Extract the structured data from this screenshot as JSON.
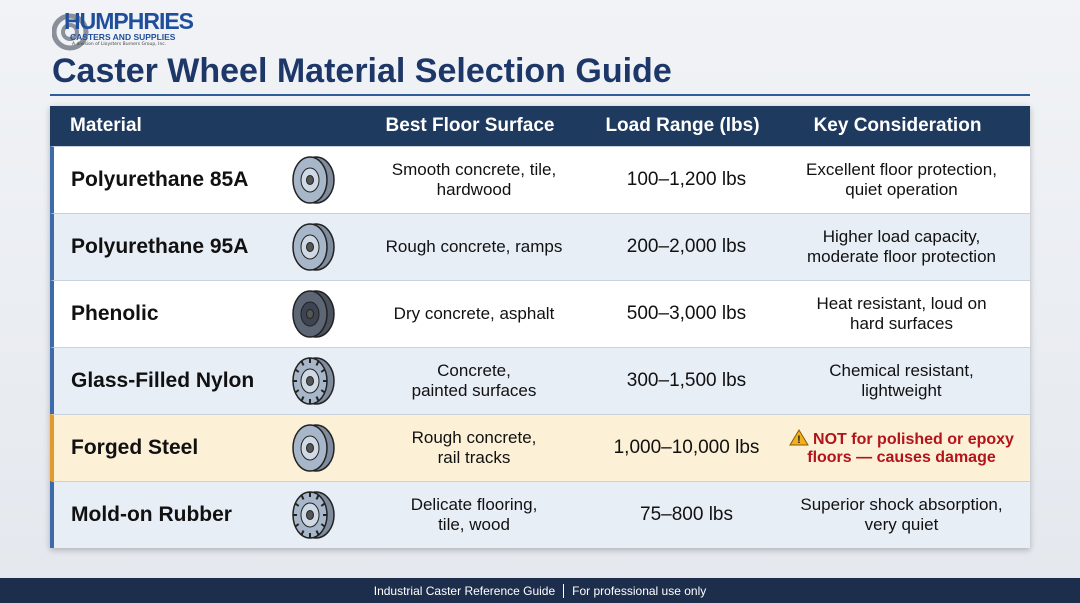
{
  "header": {
    "logo": "HUMPHRIES",
    "logo_sub": "CASTERS AND SUPPLIES",
    "logo_note": "A division of Lloysters Burners Group, Inc.",
    "title": "Caster Wheel Material Selection Guide"
  },
  "table": {
    "columns": [
      "Material",
      "Best Floor Surface",
      "Load Range (lbs)",
      "Key Consideration"
    ],
    "rows": [
      {
        "material": "Polyurethane 85A",
        "floor": [
          "Smooth concrete, tile,",
          "hardwood"
        ],
        "load": "100–1,200 lbs",
        "key": [
          "Excellent floor protection,",
          "quiet operation"
        ]
      },
      {
        "material": "Polyurethane 95A",
        "floor": [
          "Rough concrete, ramps"
        ],
        "load": "200–2,000 lbs",
        "key": [
          "Higher load capacity,",
          "moderate floor protection"
        ]
      },
      {
        "material": "Phenolic",
        "floor": [
          "Dry concrete, asphalt"
        ],
        "load": "500–3,000 lbs",
        "key": [
          "Heat resistant, loud on",
          "hard surfaces"
        ]
      },
      {
        "material": "Glass-Filled Nylon",
        "floor": [
          "Concrete,",
          "painted surfaces"
        ],
        "load": "300–1,500 lbs",
        "key": [
          "Chemical resistant,",
          "lightweight"
        ]
      },
      {
        "material": "Forged Steel",
        "floor": [
          "Rough concrete,",
          "rail tracks"
        ],
        "load": "1,000–10,000 lbs",
        "key": [
          "NOT for polished or epoxy",
          "floors — causes damage"
        ],
        "highlight": true
      },
      {
        "material": "Mold-on Rubber",
        "floor": [
          "Delicate flooring,",
          "tile, wood"
        ],
        "load": "75–800 lbs",
        "key": [
          "Superior shock absorption,",
          "very quiet"
        ]
      }
    ]
  },
  "footer": [
    "Industrial Caster Reference Guide",
    "For professional use only"
  ]
}
